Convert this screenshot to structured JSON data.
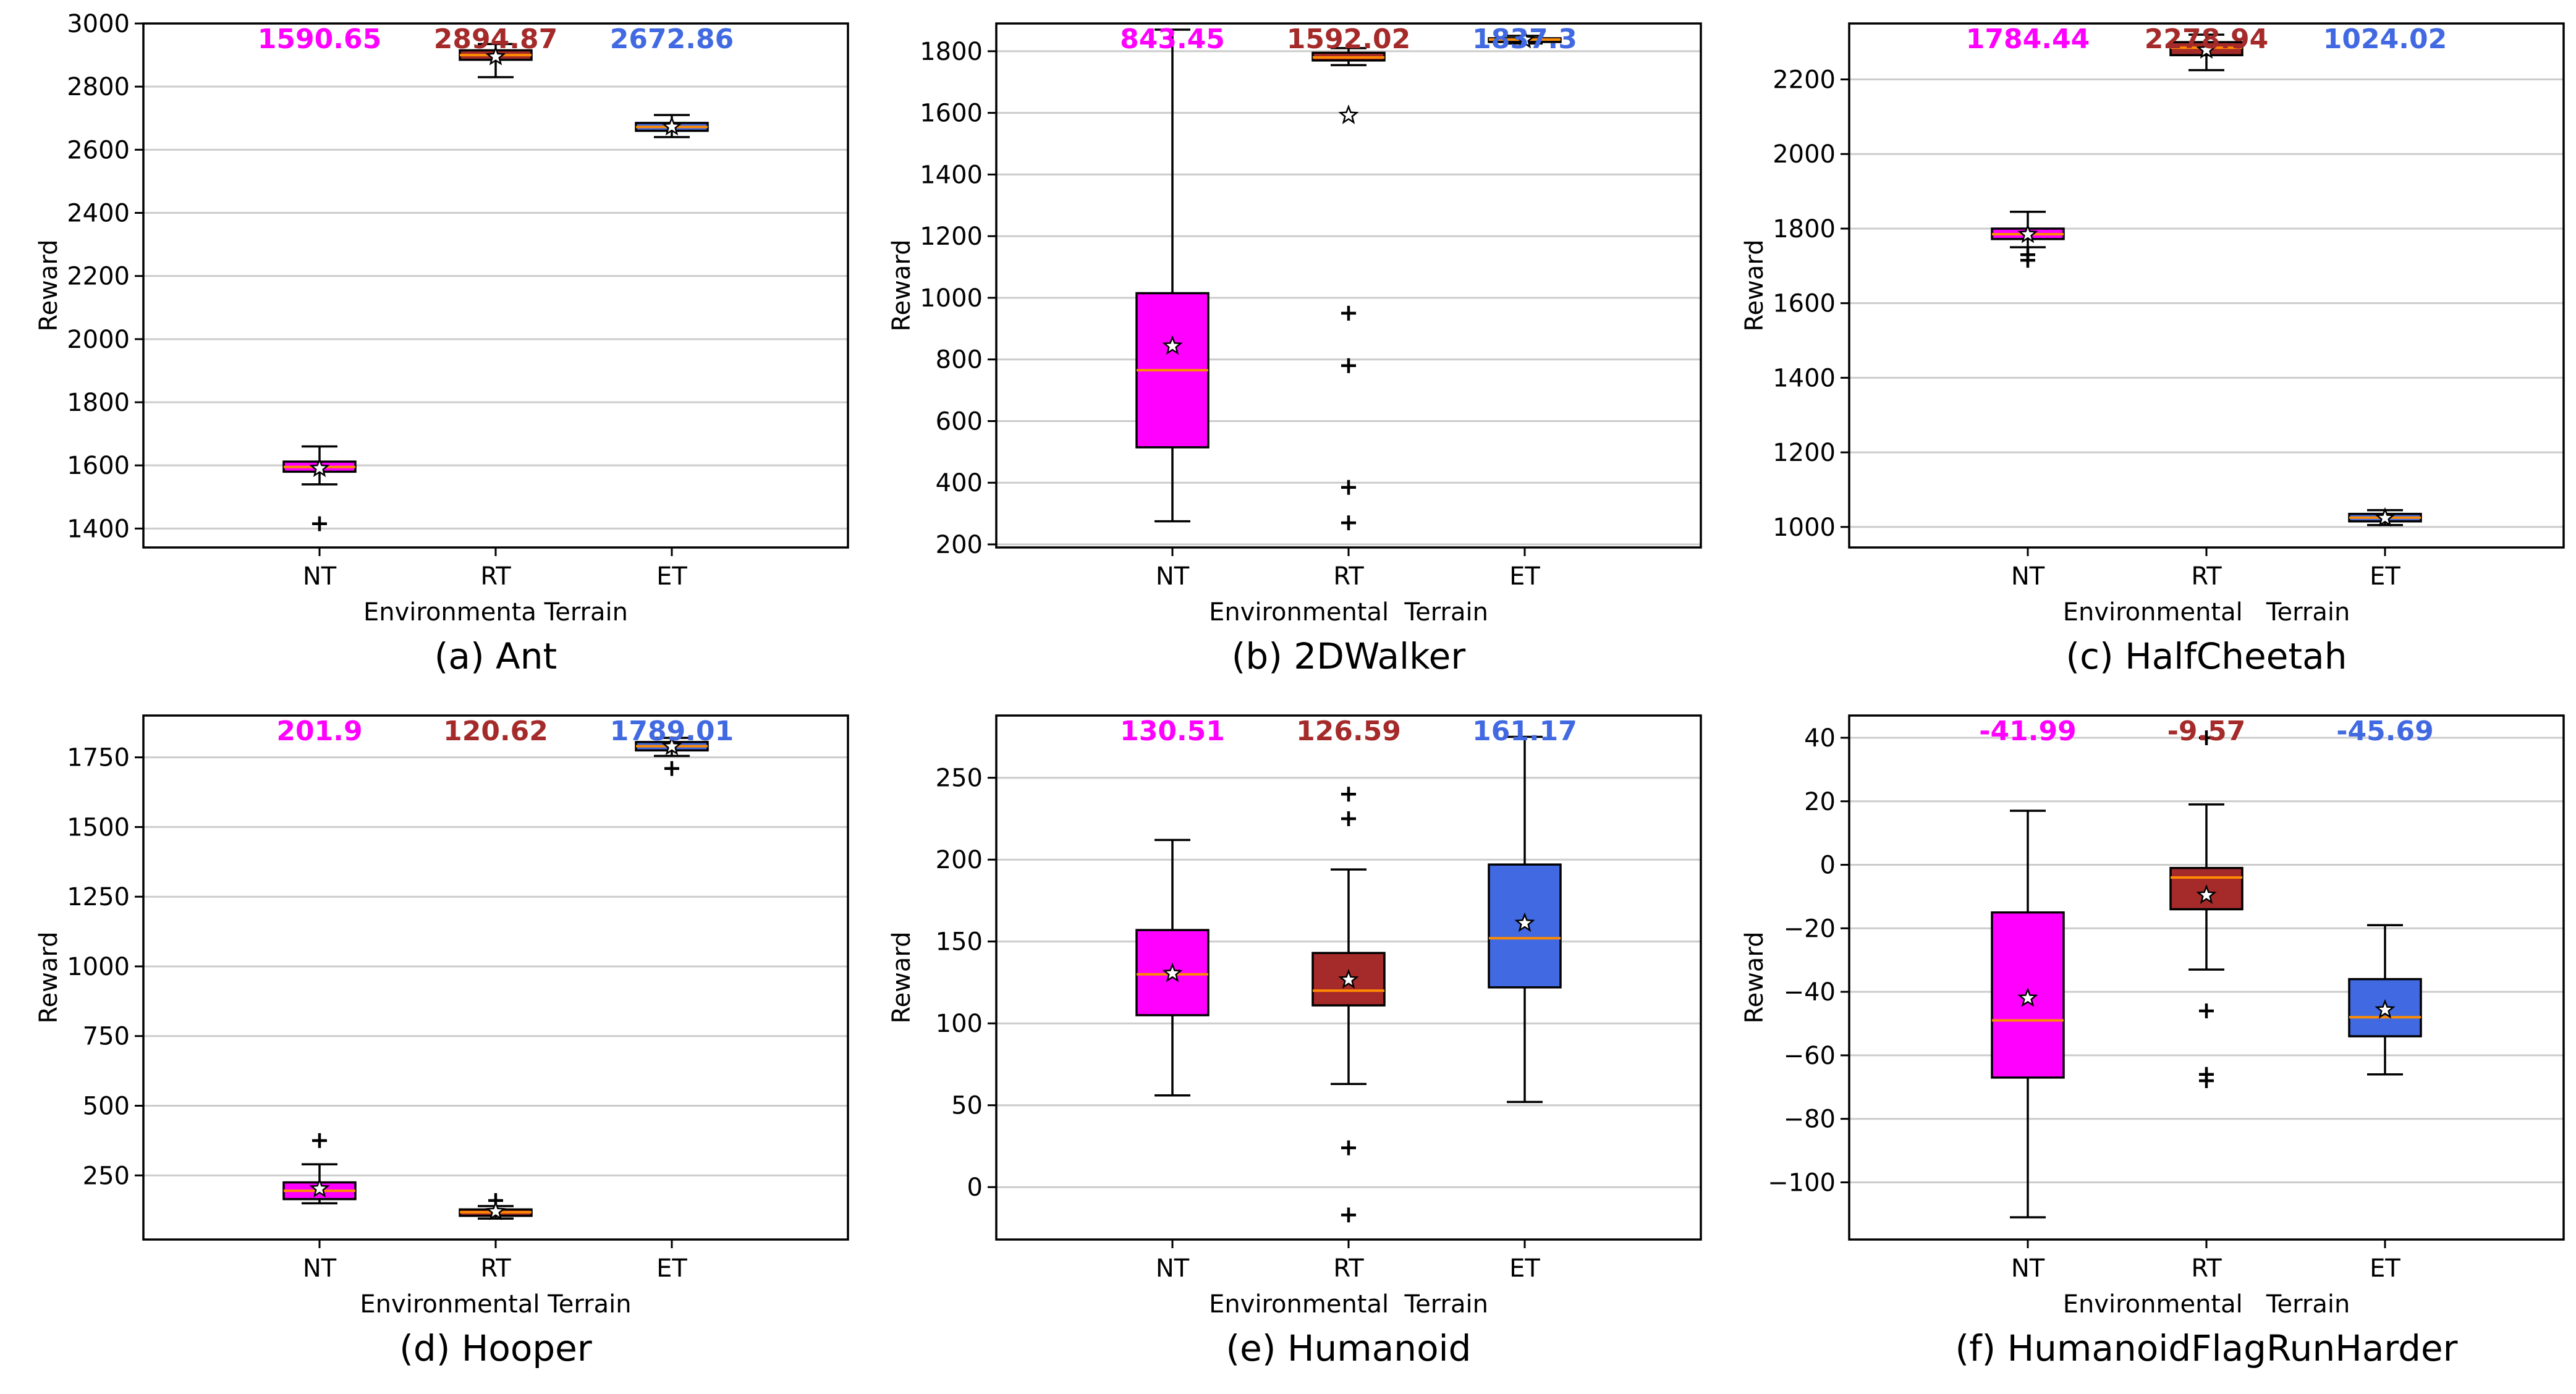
{
  "colors": {
    "NT": "#ff00ff",
    "RT": "#a52a2a",
    "ET": "#4169e1",
    "median": "#ff8c00",
    "grid": "#cccccc",
    "whisker": "#000000"
  },
  "chart_data": [
    {
      "type": "box",
      "caption": "(a) Ant",
      "xlabel": "Environmenta Terrain",
      "ylabel": "Reward",
      "ylim": [
        1340,
        3000
      ],
      "yticks": [
        1400,
        1600,
        1800,
        2000,
        2200,
        2400,
        2600,
        2800,
        3000
      ],
      "ytick_labels": [
        "1400",
        "1600",
        "1800",
        "2000",
        "2200",
        "2400",
        "2600",
        "2800",
        "3000"
      ],
      "categories": [
        "NT",
        "RT",
        "ET"
      ],
      "boxes": [
        {
          "q1": 1580,
          "median": 1595,
          "q3": 1612,
          "whislo": 1540,
          "whishi": 1660,
          "mean": 1590.65,
          "fliers": [
            1415
          ]
        },
        {
          "q1": 2885,
          "median": 2900,
          "q3": 2915,
          "whislo": 2830,
          "whishi": 2935,
          "mean": 2894.87,
          "fliers": []
        },
        {
          "q1": 2660,
          "median": 2672,
          "q3": 2685,
          "whislo": 2640,
          "whishi": 2710,
          "mean": 2672.86,
          "fliers": []
        }
      ],
      "mean_labels": [
        "1590.65",
        "2894.87",
        "2672.86"
      ]
    },
    {
      "type": "box",
      "caption": "(b) 2DWalker",
      "xlabel": "Environmental  Terrain",
      "ylabel": "Reward",
      "ylim": [
        190,
        1890
      ],
      "yticks": [
        200,
        400,
        600,
        800,
        1000,
        1200,
        1400,
        1600,
        1800
      ],
      "ytick_labels": [
        "200",
        "400",
        "600",
        "800",
        "1000",
        "1200",
        "1400",
        "1600",
        "1800"
      ],
      "categories": [
        "NT",
        "RT",
        "ET"
      ],
      "boxes": [
        {
          "q1": 515,
          "median": 765,
          "q3": 1015,
          "whislo": 275,
          "whishi": 1870,
          "mean": 843.45,
          "fliers": []
        },
        {
          "q1": 1770,
          "median": 1780,
          "q3": 1795,
          "whislo": 1755,
          "whishi": 1810,
          "mean": 1592.02,
          "fliers": [
            950,
            780,
            385,
            270
          ]
        },
        {
          "q1": 1830,
          "median": 1838,
          "q3": 1842,
          "whislo": 1825,
          "whishi": 1850,
          "mean": 1837.3,
          "fliers": []
        }
      ],
      "mean_labels": [
        "843.45",
        "1592.02",
        "1837.3"
      ]
    },
    {
      "type": "box",
      "caption": "(c) HalfCheetah",
      "xlabel": "Environmental   Terrain",
      "ylabel": "Reward",
      "ylim": [
        945,
        2350
      ],
      "yticks": [
        1000,
        1200,
        1400,
        1600,
        1800,
        2000,
        2200
      ],
      "ytick_labels": [
        "1000",
        "1200",
        "1400",
        "1600",
        "1800",
        "2000",
        "2200"
      ],
      "categories": [
        "NT",
        "RT",
        "ET"
      ],
      "boxes": [
        {
          "q1": 1772,
          "median": 1785,
          "q3": 1800,
          "whislo": 1750,
          "whishi": 1845,
          "mean": 1784.44,
          "fliers": [
            1730,
            1715
          ]
        },
        {
          "q1": 2265,
          "median": 2285,
          "q3": 2300,
          "whislo": 2225,
          "whishi": 2320,
          "mean": 2278.94,
          "fliers": []
        },
        {
          "q1": 1015,
          "median": 1025,
          "q3": 1035,
          "whislo": 1005,
          "whishi": 1045,
          "mean": 1024.02,
          "fliers": []
        }
      ],
      "mean_labels": [
        "1784.44",
        "2278.94",
        "1024.02"
      ]
    },
    {
      "type": "box",
      "caption": "(d) Hooper",
      "xlabel": "Environmental Terrain",
      "ylabel": "Reward",
      "ylim": [
        20,
        1900
      ],
      "yticks": [
        250,
        500,
        750,
        1000,
        1250,
        1500,
        1750
      ],
      "ytick_labels": [
        "250",
        "500",
        "750",
        "1000",
        "1250",
        "1500",
        "1750"
      ],
      "categories": [
        "NT",
        "RT",
        "ET"
      ],
      "boxes": [
        {
          "q1": 165,
          "median": 195,
          "q3": 225,
          "whislo": 150,
          "whishi": 290,
          "mean": 201.9,
          "fliers": [
            375
          ]
        },
        {
          "q1": 105,
          "median": 118,
          "q3": 128,
          "whislo": 95,
          "whishi": 140,
          "mean": 120.62,
          "fliers": [
            160
          ]
        },
        {
          "q1": 1775,
          "median": 1790,
          "q3": 1805,
          "whislo": 1755,
          "whishi": 1820,
          "mean": 1789.01,
          "fliers": [
            1710
          ]
        }
      ],
      "mean_labels": [
        "201.9",
        "120.62",
        "1789.01"
      ]
    },
    {
      "type": "box",
      "caption": "(e) Humanoid",
      "xlabel": "Environmental  Terrain",
      "ylabel": "Reward",
      "ylim": [
        -32,
        288
      ],
      "yticks": [
        0,
        50,
        100,
        150,
        200,
        250
      ],
      "ytick_labels": [
        "0",
        "50",
        "100",
        "150",
        "200",
        "250"
      ],
      "categories": [
        "NT",
        "RT",
        "ET"
      ],
      "boxes": [
        {
          "q1": 105,
          "median": 130,
          "q3": 157,
          "whislo": 56,
          "whishi": 212,
          "mean": 130.51,
          "fliers": []
        },
        {
          "q1": 111,
          "median": 120,
          "q3": 143,
          "whislo": 63,
          "whishi": 194,
          "mean": 126.59,
          "fliers": [
            240,
            225,
            24,
            -17
          ]
        },
        {
          "q1": 122,
          "median": 152,
          "q3": 197,
          "whislo": 52,
          "whishi": 275,
          "mean": 161.17,
          "fliers": []
        }
      ],
      "mean_labels": [
        "130.51",
        "126.59",
        "161.17"
      ]
    },
    {
      "type": "box",
      "caption": "(f) HumanoidFlagRunHarder",
      "xlabel": "Environmental   Terrain",
      "ylabel": "Reward",
      "ylim": [
        -118,
        47
      ],
      "yticks": [
        -100,
        -80,
        -60,
        -40,
        -20,
        0,
        20,
        40
      ],
      "ytick_labels": [
        "−100",
        "−80",
        "−60",
        "−40",
        "−20",
        "0",
        "20",
        "40"
      ],
      "categories": [
        "NT",
        "RT",
        "ET"
      ],
      "boxes": [
        {
          "q1": -67,
          "median": -49,
          "q3": -15,
          "whislo": -111,
          "whishi": 17,
          "mean": -41.99,
          "fliers": []
        },
        {
          "q1": -14,
          "median": -4,
          "q3": -1,
          "whislo": -33,
          "whishi": 19,
          "mean": -9.57,
          "fliers": [
            -46,
            -66,
            -68,
            40
          ]
        },
        {
          "q1": -54,
          "median": -48,
          "q3": -36,
          "whislo": -66,
          "whishi": -19,
          "mean": -45.69,
          "fliers": []
        }
      ],
      "mean_labels": [
        "-41.99",
        "-9.57",
        "-45.69"
      ]
    }
  ]
}
